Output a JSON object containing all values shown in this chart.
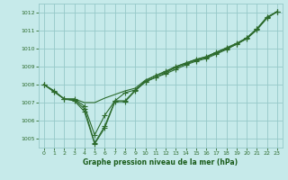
{
  "background_color": "#c6eaea",
  "grid_color": "#96c8c8",
  "line_color": "#2d6b2d",
  "marker_color": "#2d6b2d",
  "xlabel": "Graphe pression niveau de la mer (hPa)",
  "xlabel_color": "#1a5c1a",
  "ylim": [
    1004.5,
    1012.5
  ],
  "xlim": [
    -0.5,
    23.5
  ],
  "yticks": [
    1005,
    1006,
    1007,
    1008,
    1009,
    1010,
    1011,
    1012
  ],
  "xticks": [
    0,
    1,
    2,
    3,
    4,
    5,
    6,
    7,
    8,
    9,
    10,
    11,
    12,
    13,
    14,
    15,
    16,
    17,
    18,
    19,
    20,
    21,
    22,
    23
  ],
  "line1_x": [
    0,
    1,
    2,
    3,
    4,
    5,
    6,
    7,
    8,
    9,
    10,
    11,
    12,
    13,
    14,
    15,
    16,
    17,
    18,
    19,
    20,
    21,
    22,
    23
  ],
  "line1_y": [
    1008.0,
    1007.6,
    1007.2,
    1007.1,
    1006.5,
    1004.7,
    1005.6,
    1007.05,
    1007.05,
    1007.65,
    1008.15,
    1008.4,
    1008.6,
    1008.85,
    1009.1,
    1009.3,
    1009.45,
    1009.7,
    1009.95,
    1010.25,
    1010.55,
    1011.05,
    1011.7,
    1012.05
  ],
  "line2_x": [
    0,
    1,
    2,
    3,
    4,
    5,
    6,
    7,
    8,
    9,
    10,
    11,
    12,
    13,
    14,
    15,
    16,
    17,
    18,
    19,
    20,
    21,
    22,
    23
  ],
  "line2_y": [
    1008.0,
    1007.65,
    1007.2,
    1007.2,
    1006.8,
    1005.2,
    1006.3,
    1007.1,
    1007.55,
    1007.7,
    1008.2,
    1008.5,
    1008.75,
    1009.0,
    1009.2,
    1009.4,
    1009.55,
    1009.8,
    1010.05,
    1010.3,
    1010.6,
    1011.1,
    1011.75,
    1012.05
  ],
  "line3_x": [
    0,
    1,
    2,
    3,
    4,
    5,
    6,
    7,
    8,
    9,
    10,
    11,
    12,
    13,
    14,
    15,
    16,
    17,
    18,
    19,
    20,
    21,
    22,
    23
  ],
  "line3_y": [
    1008.0,
    1007.65,
    1007.2,
    1007.2,
    1007.0,
    1007.0,
    1007.25,
    1007.45,
    1007.65,
    1007.8,
    1008.25,
    1008.5,
    1008.7,
    1009.0,
    1009.2,
    1009.4,
    1009.55,
    1009.8,
    1010.0,
    1010.25,
    1010.55,
    1011.05,
    1011.7,
    1012.05
  ],
  "line4_x": [
    0,
    1,
    2,
    3,
    4,
    5,
    6,
    7,
    8,
    9,
    10,
    11,
    12,
    13,
    14,
    15,
    16,
    17,
    18,
    19,
    20,
    21,
    22,
    23
  ],
  "line4_y": [
    1008.0,
    1007.6,
    1007.2,
    1007.15,
    1006.65,
    1004.75,
    1005.7,
    1007.1,
    1007.1,
    1007.7,
    1008.15,
    1008.4,
    1008.65,
    1008.95,
    1009.15,
    1009.35,
    1009.5,
    1009.75,
    1010.0,
    1010.25,
    1010.6,
    1011.1,
    1011.75,
    1012.05
  ],
  "line1_marker": true,
  "line2_marker": true,
  "line3_marker": false,
  "line4_marker": true
}
